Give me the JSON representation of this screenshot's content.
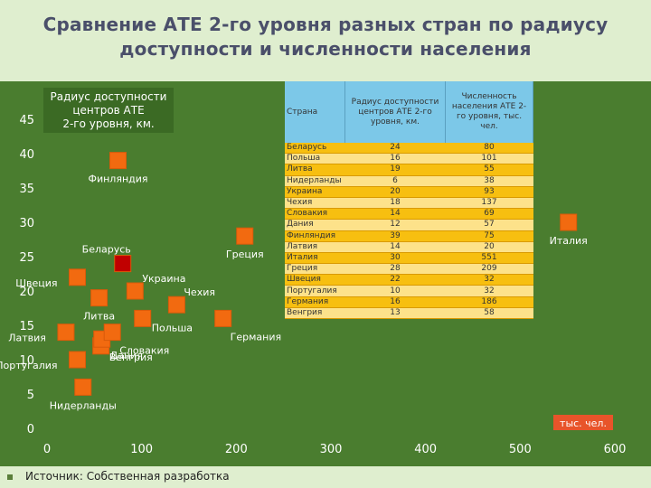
{
  "slide": {
    "title_line1": "Сравнение АТЕ 2-го уровня  разных стран по радиусу",
    "title_line2": "доступности и численности населения",
    "source": "Источник: Собственная разработка"
  },
  "chart_data": {
    "type": "scatter",
    "ylabel_line1": "Радиус доступности",
    "ylabel_line2": "центров АТЕ",
    "ylabel_line3": "2-го уровня,    км.",
    "xlabel": "тыс. чел.",
    "xlim": [
      0,
      600
    ],
    "ylim": [
      0,
      45
    ],
    "x_ticks": [
      0,
      100,
      200,
      300,
      400,
      500,
      600
    ],
    "y_ticks": [
      0,
      5,
      10,
      15,
      20,
      25,
      30,
      35,
      40,
      45
    ],
    "points": [
      {
        "label": "Финляндия",
        "x": 75,
        "y": 39,
        "highlight": false,
        "label_pos": "below-center"
      },
      {
        "label": "Беларусь",
        "x": 80,
        "y": 24,
        "highlight": true,
        "label_pos": "above-left"
      },
      {
        "label": "Греция",
        "x": 209,
        "y": 28,
        "highlight": false,
        "label_pos": "below-center"
      },
      {
        "label": "Италия",
        "x": 551,
        "y": 30,
        "highlight": false,
        "label_pos": "below-center"
      },
      {
        "label": "Украина",
        "x": 93,
        "y": 20,
        "highlight": false,
        "label_pos": "above-right"
      },
      {
        "label": "Швеция",
        "x": 32,
        "y": 22,
        "highlight": false,
        "label_pos": "below-left"
      },
      {
        "label": "Чехия",
        "x": 137,
        "y": 18,
        "highlight": false,
        "label_pos": "above-right"
      },
      {
        "label": "Литва",
        "x": 55,
        "y": 19,
        "highlight": false,
        "label_pos": "below-center"
      },
      {
        "label": "Польша",
        "x": 101,
        "y": 16,
        "highlight": false,
        "label_pos": "right"
      },
      {
        "label": "Германия",
        "x": 186,
        "y": 16,
        "highlight": false,
        "label_pos": "below-right"
      },
      {
        "label": "Латвия",
        "x": 20,
        "y": 14,
        "highlight": false,
        "label_pos": "below-left"
      },
      {
        "label": "Дания",
        "x": 57,
        "y": 12,
        "highlight": false,
        "label_pos": "right"
      },
      {
        "label": "Венгрия",
        "x": 58,
        "y": 13,
        "highlight": false,
        "label_pos": "below-right"
      },
      {
        "label": "Словакия",
        "x": 69,
        "y": 14,
        "highlight": false,
        "label_pos": "below-right"
      },
      {
        "label": "Португалия",
        "x": 32,
        "y": 10,
        "highlight": false,
        "label_pos": "below-left"
      },
      {
        "label": "Нидерланды",
        "x": 38,
        "y": 6,
        "highlight": false,
        "label_pos": "below-center"
      }
    ]
  },
  "table": {
    "headers": [
      "Страна",
      "Радиус доступности центров АТЕ 2-го уровня, км.",
      "Численность населения АТЕ 2-го уровня,   тыс. чел."
    ],
    "rows": [
      [
        "Беларусь",
        "24",
        "80"
      ],
      [
        "Польша",
        "16",
        "101"
      ],
      [
        "Литва",
        "19",
        "55"
      ],
      [
        "Нидерланды",
        "6",
        "38"
      ],
      [
        "Украина",
        "20",
        "93"
      ],
      [
        "Чехия",
        "18",
        "137"
      ],
      [
        "Словакия",
        "14",
        "69"
      ],
      [
        "Дания",
        "12",
        "57"
      ],
      [
        "Финляндия",
        "39",
        "75"
      ],
      [
        "Латвия",
        "14",
        "20"
      ],
      [
        "Италия",
        "30",
        "551"
      ],
      [
        "Греция",
        "28",
        "209"
      ],
      [
        "Швеция",
        "22",
        "32"
      ],
      [
        "Португалия",
        "10",
        "32"
      ],
      [
        "Германия",
        "16",
        "186"
      ],
      [
        "Венгрия",
        "13",
        "58"
      ]
    ]
  },
  "colors": {
    "background": "#dfeecf",
    "plot": "#4a7d2f",
    "marker": "#f26a10",
    "marker_highlight": "#c00000",
    "axis_text": "#ffffff"
  }
}
